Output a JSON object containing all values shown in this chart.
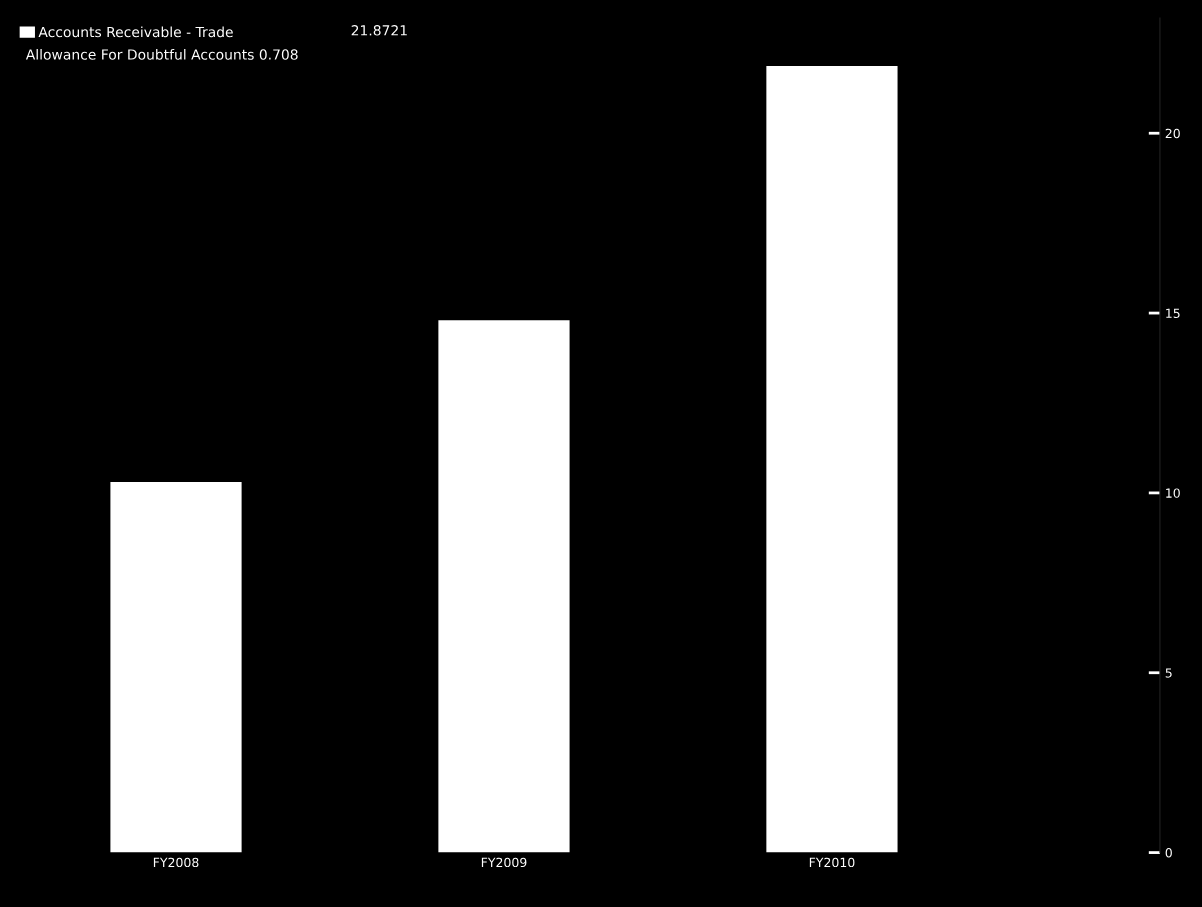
{
  "chart_data": {
    "type": "bar",
    "categories": [
      "FY2008",
      "FY2009",
      "FY2010"
    ],
    "series": [
      {
        "name": "Accounts Receivable - Trade",
        "color": "#ffffff",
        "values": [
          10.3,
          14.8,
          21.87
        ]
      }
    ],
    "annotations": [
      "21.8721",
      "Allowance For Doubtful Accounts 0.708"
    ],
    "ylim": [
      0,
      23.2
    ],
    "yticks": [
      0,
      5,
      10,
      15,
      20
    ],
    "legend": "top left",
    "grid": false
  }
}
